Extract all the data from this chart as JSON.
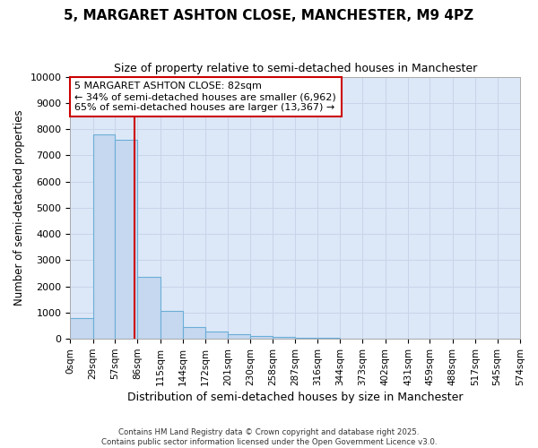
{
  "title": "5, MARGARET ASHTON CLOSE, MANCHESTER, M9 4PZ",
  "subtitle": "Size of property relative to semi-detached houses in Manchester",
  "xlabel": "Distribution of semi-detached houses by size in Manchester",
  "ylabel": "Number of semi-detached properties",
  "bin_labels": [
    "0sqm",
    "29sqm",
    "57sqm",
    "86sqm",
    "115sqm",
    "144sqm",
    "172sqm",
    "201sqm",
    "230sqm",
    "258sqm",
    "287sqm",
    "316sqm",
    "344sqm",
    "373sqm",
    "402sqm",
    "431sqm",
    "459sqm",
    "488sqm",
    "517sqm",
    "545sqm",
    "574sqm"
  ],
  "bin_edges": [
    0,
    29,
    57,
    86,
    115,
    144,
    172,
    201,
    230,
    258,
    287,
    316,
    344,
    373,
    402,
    431,
    459,
    488,
    517,
    545,
    574
  ],
  "bar_heights": [
    800,
    7800,
    7600,
    2350,
    1050,
    450,
    280,
    175,
    120,
    90,
    55,
    35,
    20,
    10,
    5,
    3,
    2,
    1,
    1,
    0
  ],
  "bar_color": "#c5d8f0",
  "bar_edge_color": "#6baed6",
  "vline_x": 82,
  "vline_color": "#cc0000",
  "annotation_title": "5 MARGARET ASHTON CLOSE: 82sqm",
  "annotation_line1": "← 34% of semi-detached houses are smaller (6,962)",
  "annotation_line2": "65% of semi-detached houses are larger (13,367) →",
  "annotation_box_color": "#ffffff",
  "annotation_box_edge": "#cc0000",
  "ylim": [
    0,
    10000
  ],
  "yticks": [
    0,
    1000,
    2000,
    3000,
    4000,
    5000,
    6000,
    7000,
    8000,
    9000,
    10000
  ],
  "grid_color": "#c8d4e8",
  "bg_color": "#dce8f8",
  "fig_bg_color": "#ffffff",
  "footer_line1": "Contains HM Land Registry data © Crown copyright and database right 2025.",
  "footer_line2": "Contains public sector information licensed under the Open Government Licence v3.0."
}
